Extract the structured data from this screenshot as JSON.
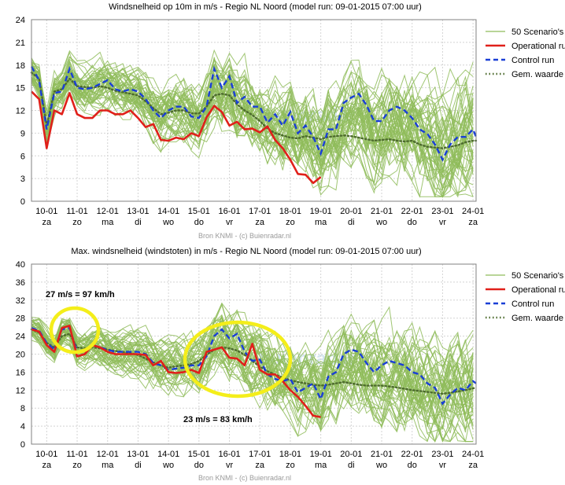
{
  "legend": {
    "scenarios": "50 Scenario's",
    "operational": "Operational run",
    "control": "Control run",
    "mean": "Gem. waarde"
  },
  "colors": {
    "scenarios": "#8fbc5a",
    "operational": "#e0201a",
    "control": "#1a3fd6",
    "mean": "#4d6b2e",
    "annotation_circle": "#f4ee1a"
  },
  "source": "Bron KNMI - (c) Buienradar.nl",
  "watermark": "buienradar",
  "chart_data": [
    {
      "type": "line",
      "title": "Windsnelheid op 10m in m/s - Regio NL Noord (model run: 09-01-2015 07:00 uur)",
      "xlabel": "",
      "ylabel": "",
      "ylim": [
        0,
        24
      ],
      "yticks": [
        0,
        3,
        6,
        9,
        12,
        15,
        18,
        21,
        24
      ],
      "xlim": [
        9.5,
        24.1
      ],
      "grid": true,
      "legend_position": "right",
      "xticks": [
        {
          "date": "10-01",
          "day": "za",
          "x": 10
        },
        {
          "date": "11-01",
          "day": "zo",
          "x": 11
        },
        {
          "date": "12-01",
          "day": "ma",
          "x": 12
        },
        {
          "date": "13-01",
          "day": "di",
          "x": 13
        },
        {
          "date": "14-01",
          "day": "wo",
          "x": 14
        },
        {
          "date": "15-01",
          "day": "do",
          "x": 15
        },
        {
          "date": "16-01",
          "day": "vr",
          "x": 16
        },
        {
          "date": "17-01",
          "day": "za",
          "x": 17
        },
        {
          "date": "18-01",
          "day": "zo",
          "x": 18
        },
        {
          "date": "19-01",
          "day": "ma",
          "x": 19
        },
        {
          "date": "20-01",
          "day": "di",
          "x": 20
        },
        {
          "date": "21-01",
          "day": "wo",
          "x": 21
        },
        {
          "date": "22-01",
          "day": "do",
          "x": 22
        },
        {
          "date": "23-01",
          "day": "vr",
          "x": 23
        },
        {
          "date": "24-01",
          "day": "za",
          "x": 24
        }
      ],
      "series": [
        {
          "name": "Operational run",
          "role": "operational",
          "x": [
            9.5,
            9.75,
            10.0,
            10.25,
            10.5,
            10.75,
            11.0,
            11.25,
            11.5,
            11.75,
            12.0,
            12.25,
            12.5,
            12.75,
            13.0,
            13.25,
            13.5,
            13.75,
            14.0,
            14.25,
            14.5,
            14.75,
            15.0,
            15.25,
            15.5,
            15.75,
            16.0,
            16.25,
            16.5,
            16.75,
            17.0,
            17.25,
            17.5,
            17.75,
            18.0,
            18.25,
            18.5,
            18.75,
            19.0
          ],
          "y": [
            14.5,
            13.5,
            7.0,
            12.0,
            11.5,
            14.3,
            11.5,
            11.0,
            11.0,
            12.0,
            12.0,
            11.5,
            11.5,
            12.0,
            11.0,
            9.8,
            10.2,
            8.1,
            8.0,
            8.4,
            8.2,
            9.0,
            8.6,
            11.1,
            12.6,
            11.8,
            10.0,
            10.5,
            9.5,
            9.6,
            9.1,
            9.9,
            8.1,
            7.0,
            5.5,
            3.6,
            3.5,
            2.4,
            3.2
          ]
        },
        {
          "name": "Control run",
          "role": "control",
          "x": [
            9.5,
            9.75,
            10.0,
            10.25,
            10.5,
            10.75,
            11.0,
            11.25,
            11.5,
            11.75,
            12.0,
            12.25,
            12.5,
            12.75,
            13.0,
            13.25,
            13.5,
            13.75,
            14.0,
            14.25,
            14.5,
            14.75,
            15.0,
            15.25,
            15.5,
            15.75,
            16.0,
            16.25,
            16.5,
            16.75,
            17.0,
            17.25,
            17.5,
            17.75,
            18.0,
            18.25,
            18.5,
            18.75,
            19.0,
            19.25,
            19.5,
            19.75,
            20.0,
            20.25,
            20.5,
            20.75,
            21.0,
            21.25,
            21.5,
            21.75,
            22.0,
            22.25,
            22.5,
            22.75,
            23.0,
            23.25,
            23.5,
            23.75,
            24.0,
            24.1
          ],
          "y": [
            17.8,
            16.0,
            9.5,
            14.3,
            14.5,
            17.5,
            15.0,
            14.8,
            15.0,
            15.5,
            16.0,
            14.8,
            14.5,
            14.8,
            14.5,
            13.5,
            12.0,
            11.0,
            12.0,
            12.5,
            12.5,
            11.2,
            11.0,
            12.5,
            17.5,
            15.0,
            16.5,
            13.0,
            13.8,
            12.5,
            12.5,
            10.4,
            11.5,
            10.0,
            11.8,
            9.0,
            10.0,
            8.5,
            6.3,
            9.5,
            9.5,
            13.0,
            13.7,
            14.2,
            12.7,
            10.6,
            10.6,
            12.0,
            12.5,
            12.0,
            11.0,
            9.5,
            8.9,
            7.5,
            5.5,
            7.5,
            8.5,
            8.5,
            9.5,
            8.5
          ]
        },
        {
          "name": "Gem. waarde",
          "role": "mean",
          "x": [
            9.5,
            9.75,
            10.0,
            10.25,
            10.5,
            10.75,
            11.0,
            11.25,
            11.5,
            11.75,
            12.0,
            12.25,
            12.5,
            12.75,
            13.0,
            13.25,
            13.5,
            13.75,
            14.0,
            14.25,
            14.5,
            14.75,
            15.0,
            15.25,
            15.5,
            15.75,
            16.0,
            16.25,
            16.5,
            16.75,
            17.0,
            17.25,
            17.5,
            17.75,
            18.0,
            18.25,
            18.5,
            18.75,
            19.0,
            19.25,
            19.5,
            19.75,
            20.0,
            20.25,
            20.5,
            20.75,
            21.0,
            21.25,
            21.5,
            21.75,
            22.0,
            22.25,
            22.5,
            22.75,
            23.0,
            23.25,
            23.5,
            23.75,
            24.0,
            24.1
          ],
          "y": [
            17.0,
            16.2,
            10.0,
            14.5,
            14.8,
            16.2,
            15.2,
            15.1,
            15.0,
            15.2,
            15.0,
            14.6,
            14.4,
            14.2,
            14.0,
            13.2,
            12.3,
            11.5,
            11.7,
            12.0,
            12.0,
            11.6,
            11.6,
            12.5,
            14.0,
            14.2,
            14.0,
            12.8,
            12.0,
            11.4,
            10.6,
            9.6,
            9.0,
            8.7,
            8.4,
            8.3,
            8.6,
            8.4,
            8.2,
            8.5,
            8.6,
            8.7,
            8.6,
            8.4,
            8.2,
            8.0,
            8.1,
            8.2,
            8.0,
            7.9,
            8.0,
            7.5,
            7.2,
            7.1,
            7.0,
            7.2,
            7.4,
            7.8,
            8.0,
            8.0
          ]
        }
      ],
      "scenarios": {
        "count": 50,
        "name": "50 Scenario's",
        "spread_start": 1.5,
        "spread_end": 6.5,
        "seed": 7
      }
    },
    {
      "type": "line",
      "title": "Max. windsnelheid (windstoten) in m/s - Regio NL Noord (model run: 09-01-2015 07:00 uur)",
      "xlabel": "",
      "ylabel": "",
      "ylim": [
        0,
        40
      ],
      "yticks": [
        0,
        4,
        8,
        12,
        16,
        20,
        24,
        28,
        32,
        36,
        40
      ],
      "xlim": [
        9.5,
        24.1
      ],
      "grid": true,
      "legend_position": "right",
      "xticks": [
        {
          "date": "10-01",
          "day": "za",
          "x": 10
        },
        {
          "date": "11-01",
          "day": "zo",
          "x": 11
        },
        {
          "date": "12-01",
          "day": "ma",
          "x": 12
        },
        {
          "date": "13-01",
          "day": "di",
          "x": 13
        },
        {
          "date": "14-01",
          "day": "wo",
          "x": 14
        },
        {
          "date": "15-01",
          "day": "do",
          "x": 15
        },
        {
          "date": "16-01",
          "day": "vr",
          "x": 16
        },
        {
          "date": "17-01",
          "day": "za",
          "x": 17
        },
        {
          "date": "18-01",
          "day": "zo",
          "x": 18
        },
        {
          "date": "19-01",
          "day": "ma",
          "x": 19
        },
        {
          "date": "20-01",
          "day": "di",
          "x": 20
        },
        {
          "date": "21-01",
          "day": "wo",
          "x": 21
        },
        {
          "date": "22-01",
          "day": "do",
          "x": 22
        },
        {
          "date": "23-01",
          "day": "vr",
          "x": 23
        },
        {
          "date": "24-01",
          "day": "za",
          "x": 24
        }
      ],
      "series": [
        {
          "name": "Operational run",
          "role": "operational",
          "x": [
            9.5,
            9.75,
            10.0,
            10.25,
            10.5,
            10.75,
            11.0,
            11.25,
            11.5,
            11.75,
            12.0,
            12.25,
            12.5,
            12.75,
            13.0,
            13.25,
            13.5,
            13.75,
            14.0,
            14.25,
            14.5,
            14.75,
            15.0,
            15.25,
            15.5,
            15.75,
            16.0,
            16.25,
            16.5,
            16.75,
            17.0,
            17.25,
            17.5,
            17.75,
            18.0,
            18.25,
            18.5,
            18.75,
            19.0
          ],
          "y": [
            25.5,
            25.0,
            22.0,
            20.5,
            25.8,
            26.3,
            19.5,
            20.0,
            22.0,
            21.5,
            20.5,
            20.0,
            20.0,
            20.0,
            20.0,
            19.8,
            17.5,
            18.5,
            16.0,
            15.8,
            16.0,
            16.5,
            15.8,
            20.5,
            21.0,
            21.5,
            19.2,
            19.0,
            17.5,
            22.3,
            16.5,
            15.5,
            15.5,
            14.0,
            12.0,
            10.5,
            8.5,
            6.3,
            6.0
          ]
        },
        {
          "name": "Control run",
          "role": "control",
          "x": [
            9.5,
            9.75,
            10.0,
            10.25,
            10.5,
            10.75,
            11.0,
            11.25,
            11.5,
            11.75,
            12.0,
            12.25,
            12.5,
            12.75,
            13.0,
            13.25,
            13.5,
            13.75,
            14.0,
            14.25,
            14.5,
            14.75,
            15.0,
            15.25,
            15.5,
            15.75,
            16.0,
            16.25,
            16.5,
            16.75,
            17.0,
            17.25,
            17.5,
            17.75,
            18.0,
            18.25,
            18.5,
            18.75,
            19.0,
            19.25,
            19.5,
            19.75,
            20.0,
            20.25,
            20.5,
            20.75,
            21.0,
            21.25,
            21.5,
            21.75,
            22.0,
            22.25,
            22.5,
            22.75,
            23.0,
            23.25,
            23.5,
            23.75,
            24.0,
            24.1
          ],
          "y": [
            25.8,
            25.2,
            22.5,
            21.0,
            25.5,
            25.8,
            20.5,
            21.0,
            22.0,
            21.5,
            21.0,
            20.5,
            20.5,
            20.5,
            20.5,
            20.0,
            18.0,
            17.5,
            16.5,
            16.8,
            17.0,
            17.5,
            17.5,
            19.5,
            24.0,
            25.5,
            23.5,
            24.5,
            20.5,
            18.5,
            18.8,
            15.5,
            14.5,
            14.0,
            14.5,
            11.5,
            12.5,
            13.5,
            10.0,
            15.0,
            16.0,
            20.0,
            21.0,
            20.5,
            18.0,
            16.0,
            17.5,
            18.5,
            18.0,
            17.5,
            16.0,
            15.5,
            13.5,
            12.5,
            9.0,
            11.0,
            12.5,
            12.0,
            14.0,
            13.5
          ]
        },
        {
          "name": "Gem. waarde",
          "role": "mean",
          "x": [
            9.5,
            9.75,
            10.0,
            10.25,
            10.5,
            10.75,
            11.0,
            11.25,
            11.5,
            11.75,
            12.0,
            12.25,
            12.5,
            12.75,
            13.0,
            13.25,
            13.5,
            13.75,
            14.0,
            14.25,
            14.5,
            14.75,
            15.0,
            15.25,
            15.5,
            15.75,
            16.0,
            16.25,
            16.5,
            16.75,
            17.0,
            17.25,
            17.5,
            17.75,
            18.0,
            18.25,
            18.5,
            18.75,
            19.0,
            19.25,
            19.5,
            19.75,
            20.0,
            20.25,
            20.5,
            20.75,
            21.0,
            21.25,
            21.5,
            21.75,
            22.0,
            22.25,
            22.5,
            22.75,
            23.0,
            23.25,
            23.5,
            23.75,
            24.0,
            24.1
          ],
          "y": [
            25.5,
            24.8,
            22.5,
            21.5,
            24.0,
            24.5,
            21.5,
            21.3,
            21.5,
            21.3,
            21.0,
            20.7,
            20.5,
            20.2,
            19.8,
            19.0,
            18.2,
            17.5,
            17.0,
            17.3,
            17.5,
            17.8,
            18.5,
            19.8,
            21.0,
            21.5,
            21.3,
            20.8,
            19.8,
            18.5,
            17.2,
            16.2,
            15.5,
            14.8,
            14.2,
            13.8,
            13.5,
            13.2,
            13.0,
            13.2,
            13.5,
            13.8,
            13.5,
            13.2,
            13.0,
            13.0,
            13.0,
            12.8,
            12.6,
            12.3,
            12.0,
            11.8,
            11.6,
            11.4,
            11.2,
            11.4,
            11.7,
            12.0,
            12.4,
            12.5
          ]
        }
      ],
      "scenarios": {
        "count": 50,
        "name": "50 Scenario's",
        "spread_start": 2.0,
        "spread_end": 10.0,
        "seed": 13
      },
      "annotations": [
        {
          "text": "27 m/s = 97 km/h"
        },
        {
          "text": "23 m/s = 83 km/h"
        }
      ]
    }
  ]
}
